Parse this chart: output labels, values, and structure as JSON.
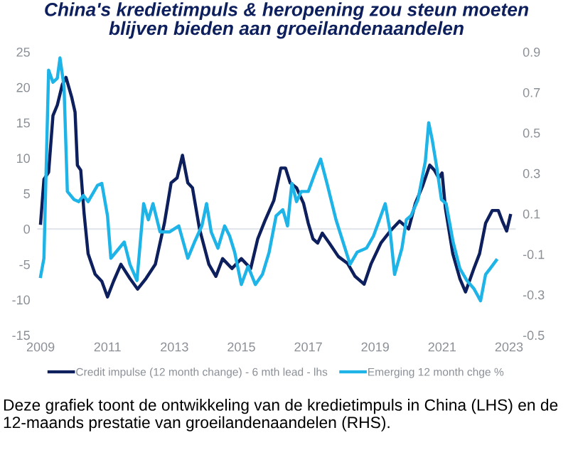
{
  "chart_data": {
    "type": "line",
    "title": "China's kredietimpuls & heropening zou steun moeten\nblijven bieden aan groeilandenaandelen",
    "annotations": [
      "Deze grafiek toont de ontwikkeling van de kredietimpuls in China (LHS) en de 12-maands prestatie van groeilandenaandelen (RHS)."
    ],
    "xlim": [
      2008.9,
      2023.2
    ],
    "xticks": [
      2009,
      2011,
      2013,
      2015,
      2017,
      2019,
      2021,
      2023
    ],
    "ylim": [
      -15,
      25
    ],
    "yticks": [
      -15,
      -10,
      -5,
      0,
      5,
      10,
      15,
      20,
      25
    ],
    "y2lim": [
      -0.5,
      0.9
    ],
    "y2ticks": [
      -0.5,
      -0.3,
      -0.1,
      0.1,
      0.3,
      0.5,
      0.7,
      0.9
    ],
    "ref_lines": [
      {
        "axis": "y",
        "value": 0,
        "label": null,
        "color": "#e3e6ea"
      }
    ],
    "grid": false,
    "legend": "bottom",
    "line_style": "solid",
    "marker": "none",
    "series": [
      {
        "name": "Credit impulse (12 month change) - 6 mth lead - lhs",
        "color": "#0d1f5c",
        "axis": "y",
        "x": [
          2009.0,
          2009.1,
          2009.24,
          2009.37,
          2009.5,
          2009.65,
          2009.76,
          2009.93,
          2010.03,
          2010.1,
          2010.2,
          2010.3,
          2010.42,
          2010.63,
          2010.83,
          2011.0,
          2011.18,
          2011.4,
          2011.67,
          2011.9,
          2012.15,
          2012.43,
          2012.7,
          2012.9,
          2013.08,
          2013.24,
          2013.4,
          2013.54,
          2013.75,
          2014.03,
          2014.24,
          2014.44,
          2014.72,
          2015.0,
          2015.28,
          2015.49,
          2015.7,
          2015.97,
          2016.18,
          2016.32,
          2016.46,
          2016.65,
          2016.86,
          2017.0,
          2017.14,
          2017.28,
          2017.42,
          2017.63,
          2017.9,
          2018.18,
          2018.4,
          2018.67,
          2018.88,
          2019.17,
          2019.45,
          2019.73,
          2020.0,
          2020.2,
          2020.42,
          2020.63,
          2020.77,
          2020.9,
          2021.0,
          2021.1,
          2021.32,
          2021.53,
          2021.7,
          2021.95,
          2022.12,
          2022.3,
          2022.5,
          2022.68,
          2022.8,
          2022.93,
          2023.04
        ],
        "values": [
          0.8,
          7,
          8,
          16,
          17.5,
          20.4,
          21.4,
          18.6,
          16.5,
          9,
          8.3,
          2.2,
          -3.5,
          -6.4,
          -7.4,
          -9.6,
          -7.4,
          -5,
          -7,
          -8.5,
          -7,
          -5,
          0.8,
          6.5,
          7.2,
          10.4,
          6.5,
          5.8,
          0,
          -5,
          -6.7,
          -4.2,
          -5.6,
          -4.2,
          -5.6,
          -1.4,
          1.1,
          4,
          8.6,
          8.6,
          6.5,
          5.8,
          3.6,
          0.8,
          -1.4,
          -2,
          -0.6,
          -2,
          -3.9,
          -4.9,
          -6.7,
          -7.8,
          -4.9,
          -2,
          -0.3,
          1.1,
          0,
          3.6,
          6.1,
          9,
          8.3,
          7.2,
          7.9,
          2.9,
          -3.5,
          -7,
          -8.9,
          -5.6,
          -3.5,
          0.8,
          2.6,
          2.6,
          1.1,
          -0.3,
          1.9
        ]
      },
      {
        "name": "Emerging 12 month chge %",
        "color": "#1fb4e8",
        "axis": "y2",
        "x": [
          2009.0,
          2009.1,
          2009.24,
          2009.37,
          2009.5,
          2009.58,
          2009.7,
          2009.8,
          2010.0,
          2010.14,
          2010.28,
          2010.42,
          2010.7,
          2010.83,
          2011.0,
          2011.1,
          2011.25,
          2011.5,
          2011.67,
          2011.88,
          2012.08,
          2012.22,
          2012.36,
          2012.57,
          2012.85,
          2013.13,
          2013.4,
          2013.6,
          2013.82,
          2013.96,
          2014.1,
          2014.3,
          2014.5,
          2014.65,
          2014.8,
          2015.0,
          2015.2,
          2015.42,
          2015.63,
          2015.83,
          2016.04,
          2016.24,
          2016.38,
          2016.51,
          2016.65,
          2016.79,
          2017.0,
          2017.2,
          2017.37,
          2017.56,
          2017.83,
          2018.04,
          2018.25,
          2018.46,
          2018.74,
          2018.95,
          2019.17,
          2019.3,
          2019.45,
          2019.58,
          2019.8,
          2019.93,
          2020.07,
          2020.28,
          2020.5,
          2020.6,
          2020.7,
          2020.84,
          2020.98,
          2021.12,
          2021.33,
          2021.53,
          2021.74,
          2021.95,
          2022.15,
          2022.3,
          2022.44,
          2022.62
        ],
        "values": [
          -0.21,
          -0.12,
          0.81,
          0.75,
          0.77,
          0.87,
          0.73,
          0.21,
          0.17,
          0.16,
          0.19,
          0.16,
          0.24,
          0.25,
          0.09,
          -0.12,
          -0.09,
          -0.04,
          -0.15,
          -0.23,
          0.15,
          0.07,
          0.15,
          0.01,
          0.01,
          0.04,
          -0.12,
          -0.04,
          0.04,
          0.15,
          0.01,
          -0.07,
          0.04,
          -0.01,
          -0.09,
          -0.25,
          -0.16,
          -0.25,
          -0.2,
          -0.09,
          0.09,
          0.12,
          0.04,
          0.25,
          0.16,
          0.21,
          0.21,
          0.3,
          0.37,
          0.25,
          0.07,
          -0.04,
          -0.15,
          -0.09,
          -0.07,
          -0.01,
          0.09,
          0.15,
          0.01,
          -0.2,
          -0.07,
          0.07,
          0.09,
          0.17,
          0.36,
          0.55,
          0.47,
          0.33,
          0.17,
          0.15,
          -0.04,
          -0.17,
          -0.23,
          -0.27,
          -0.33,
          -0.2,
          -0.17,
          -0.13
        ]
      }
    ]
  }
}
